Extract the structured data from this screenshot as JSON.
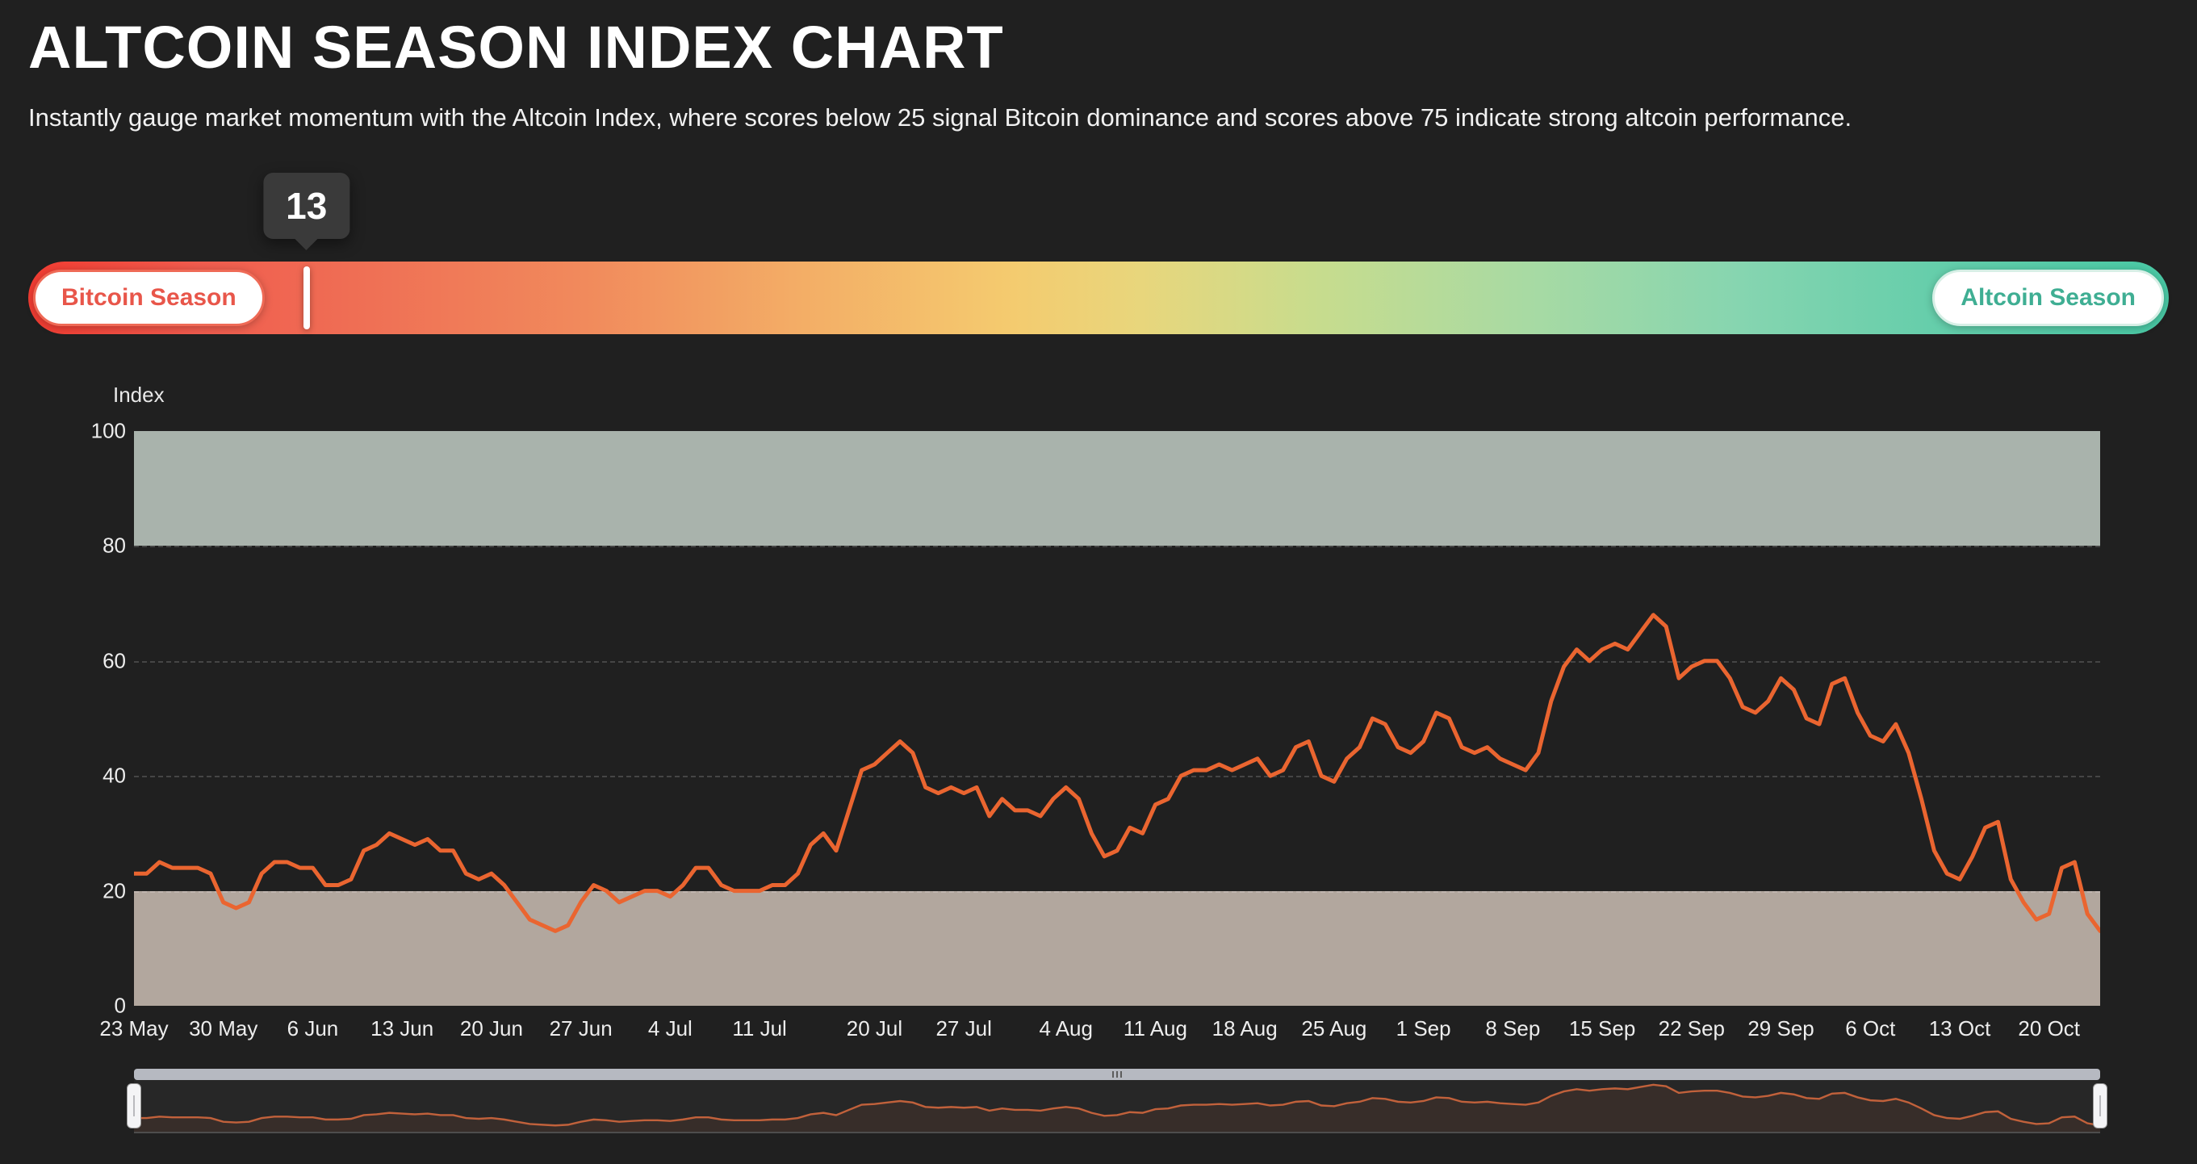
{
  "header": {
    "title": "ALTCOIN SEASON INDEX CHART",
    "subtitle": "Instantly gauge market momentum with the Altcoin Index, where scores below 25 signal Bitcoin dominance and scores above 75 indicate strong altcoin performance."
  },
  "gauge": {
    "value": "13",
    "value_percent": 13,
    "left_label": "Bitcoin Season",
    "right_label": "Altcoin Season",
    "colors": {
      "bitcoin": "#e8564a",
      "altcoin": "#3fae93",
      "marker": "#ffffff"
    }
  },
  "chart_data": {
    "type": "line",
    "title": "Altcoin Season Index",
    "ylabel": "Index",
    "ylim": [
      0,
      100
    ],
    "yticks": [
      0,
      20,
      40,
      60,
      80,
      100
    ],
    "grid": "dashed",
    "legend": "none",
    "xtick_labels": [
      "23 May",
      "30 May",
      "6 Jun",
      "13 Jun",
      "20 Jun",
      "27 Jun",
      "4 Jul",
      "11 Jul",
      "20 Jul",
      "27 Jul",
      "4 Aug",
      "11 Aug",
      "18 Aug",
      "25 Aug",
      "1 Sep",
      "8 Sep",
      "15 Sep",
      "22 Sep",
      "29 Sep",
      "6 Oct",
      "13 Oct",
      "20 Oct"
    ],
    "xtick_days": [
      0,
      7,
      14,
      21,
      28,
      35,
      42,
      49,
      58,
      65,
      73,
      80,
      87,
      94,
      101,
      108,
      115,
      122,
      129,
      136,
      143,
      150
    ],
    "total_days": 154,
    "bands": [
      {
        "from": 80,
        "to": 100,
        "color": "#a9b3ac",
        "meaning": "Altcoin Season zone (above 75)"
      },
      {
        "from": 0,
        "to": 20,
        "color": "#b2a79e",
        "meaning": "Bitcoin Season zone (below 25)"
      }
    ],
    "series": [
      {
        "name": "Altcoin Season Index",
        "color": "#ea6530",
        "values": [
          23,
          23,
          25,
          24,
          24,
          24,
          23,
          18,
          17,
          18,
          23,
          25,
          25,
          24,
          24,
          21,
          21,
          22,
          27,
          28,
          30,
          29,
          28,
          29,
          27,
          27,
          23,
          22,
          23,
          21,
          18,
          15,
          14,
          13,
          14,
          18,
          21,
          20,
          18,
          19,
          20,
          20,
          19,
          21,
          24,
          24,
          21,
          20,
          20,
          20,
          21,
          21,
          23,
          28,
          30,
          27,
          34,
          41,
          42,
          44,
          46,
          44,
          38,
          37,
          38,
          37,
          38,
          33,
          36,
          34,
          34,
          33,
          36,
          38,
          36,
          30,
          26,
          27,
          31,
          30,
          35,
          36,
          40,
          41,
          41,
          42,
          41,
          42,
          43,
          40,
          41,
          45,
          46,
          40,
          39,
          43,
          45,
          50,
          49,
          45,
          44,
          46,
          51,
          50,
          45,
          44,
          45,
          43,
          42,
          41,
          44,
          53,
          59,
          62,
          60,
          62,
          63,
          62,
          65,
          68,
          66,
          57,
          59,
          60,
          60,
          57,
          52,
          51,
          53,
          57,
          55,
          50,
          49,
          56,
          57,
          51,
          47,
          46,
          49,
          44,
          36,
          27,
          23,
          22,
          26,
          31,
          32,
          22,
          18,
          15,
          16,
          24,
          25,
          16,
          13
        ]
      }
    ]
  }
}
